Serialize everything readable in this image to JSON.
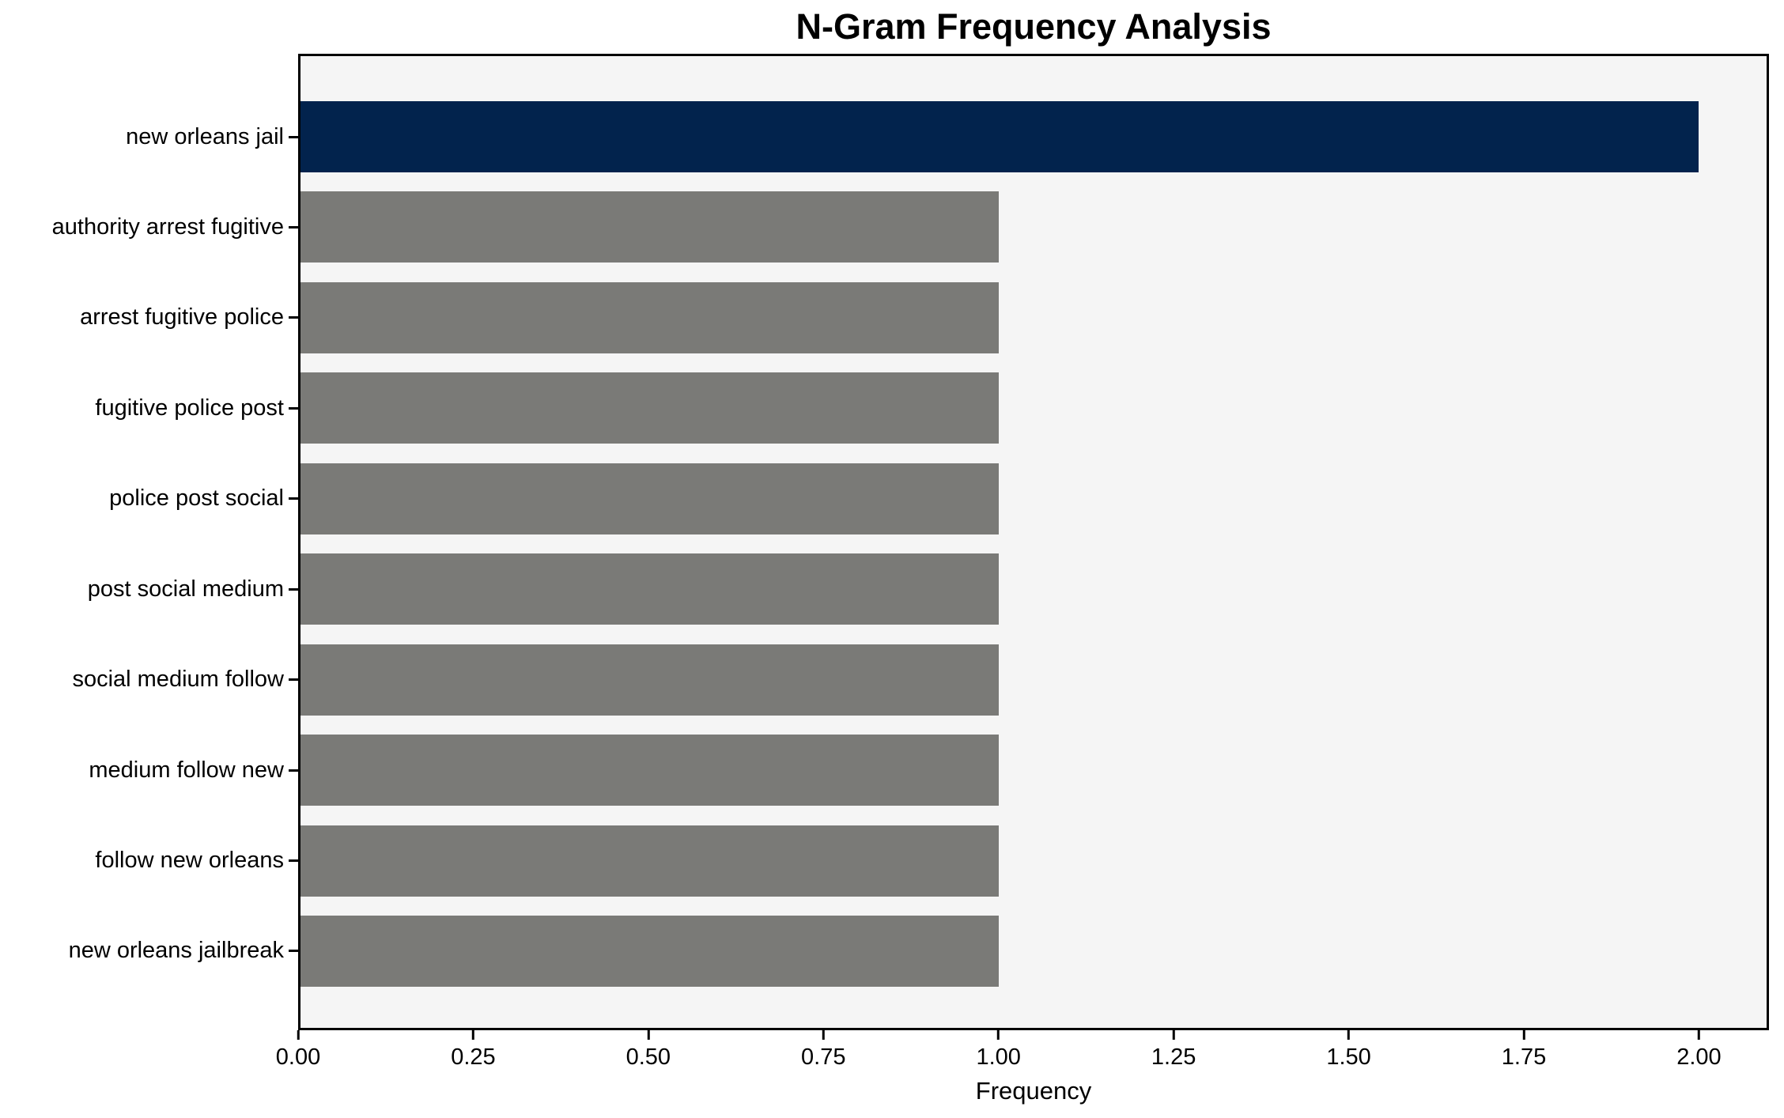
{
  "chart_data": {
    "type": "bar",
    "orientation": "horizontal",
    "title": "N-Gram Frequency Analysis",
    "xlabel": "Frequency",
    "ylabel": "",
    "categories": [
      "new orleans jail",
      "authority arrest fugitive",
      "arrest fugitive police",
      "fugitive police post",
      "police post social",
      "post social medium",
      "social medium follow",
      "medium follow new",
      "follow new orleans",
      "new orleans jailbreak"
    ],
    "values": [
      2,
      1,
      1,
      1,
      1,
      1,
      1,
      1,
      1,
      1
    ],
    "colors": [
      "#02234d",
      "#7a7a77",
      "#7a7a77",
      "#7a7a77",
      "#7a7a77",
      "#7a7a77",
      "#7a7a77",
      "#7a7a77",
      "#7a7a77",
      "#7a7a77"
    ],
    "highlight_color": "#02234d",
    "default_color": "#7a7a77",
    "xlim": [
      0,
      2.1
    ],
    "xtick_values": [
      0,
      0.25,
      0.5,
      0.75,
      1.0,
      1.25,
      1.5,
      1.75,
      2.0
    ],
    "xtick_labels": [
      "0.00",
      "0.25",
      "0.50",
      "0.75",
      "1.00",
      "1.25",
      "1.50",
      "1.75",
      "2.00"
    ],
    "grid": false,
    "legend_position": "none",
    "plot_background": "#f5f5f5",
    "figure_background": "#ffffff",
    "spine_color": "#000000"
  }
}
